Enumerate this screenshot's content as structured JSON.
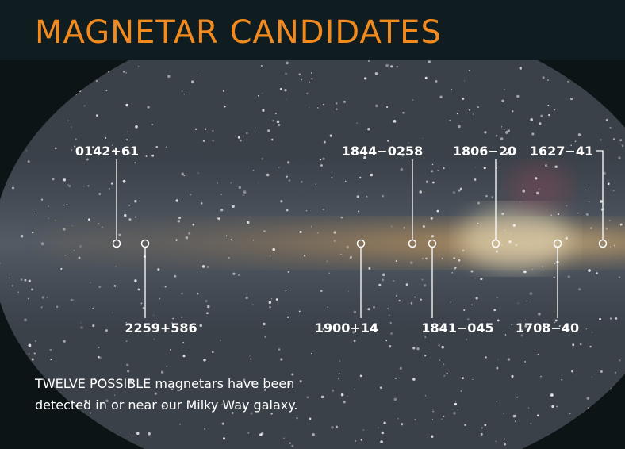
{
  "header": {
    "title": "MAGNETAR CANDIDATES"
  },
  "labels": [
    "0142+61",
    "2259+586",
    "1900+14",
    "1844−0258",
    "1841−045",
    "1806−20",
    "1708−40",
    "1627−41"
  ],
  "caption": {
    "lead": "TWELVE POSSIBLE",
    "text": "magnetars have been detected in or near our Milky Way galaxy."
  }
}
